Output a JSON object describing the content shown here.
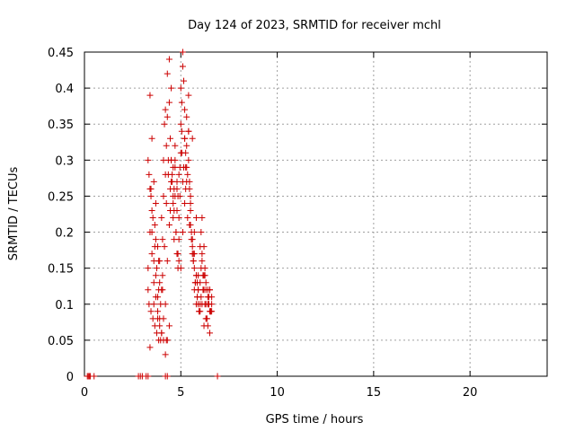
{
  "chart_data": {
    "type": "scatter",
    "title": "Day 124 of 2023, SRMTID for receiver mchl",
    "xlabel": "GPS time / hours",
    "ylabel": "SRMTID / TECUs",
    "xlim": [
      0,
      24
    ],
    "ylim": [
      0,
      0.45
    ],
    "xticks": [
      0,
      5,
      10,
      15,
      20
    ],
    "yticks": [
      0,
      0.05,
      0.1,
      0.15,
      0.2,
      0.25,
      0.3,
      0.35,
      0.4,
      0.45
    ],
    "grid": true,
    "marker": "+",
    "color": "#cc0000",
    "series": [
      {
        "name": "SRMTID",
        "x": [
          0.15,
          0.2,
          0.25,
          0.3,
          0.5,
          2.8,
          2.9,
          3.0,
          3.2,
          3.3,
          4.2,
          4.3,
          6.9,
          3.3,
          3.3,
          3.35,
          3.4,
          3.4,
          3.45,
          3.5,
          3.5,
          3.55,
          3.6,
          3.6,
          3.65,
          3.7,
          3.7,
          3.75,
          3.8,
          3.8,
          3.85,
          3.9,
          3.9,
          3.95,
          4.0,
          4.0,
          4.05,
          4.1,
          4.1,
          4.15,
          4.2,
          4.2,
          4.25,
          4.3,
          4.3,
          4.35,
          4.4,
          4.4,
          4.45,
          4.5,
          4.5,
          4.55,
          4.6,
          4.6,
          4.65,
          4.7,
          4.7,
          4.75,
          4.8,
          4.8,
          4.85,
          4.9,
          4.9,
          4.95,
          5.0,
          5.0,
          5.05,
          5.1,
          5.1,
          5.15,
          5.2,
          5.2,
          5.25,
          5.3,
          5.3,
          5.35,
          5.4,
          5.4,
          5.45,
          5.5,
          5.5,
          5.55,
          5.6,
          5.6,
          5.65,
          5.7,
          5.7,
          5.75,
          5.8,
          5.8,
          5.85,
          5.9,
          5.9,
          5.95,
          6.0,
          6.0,
          6.05,
          6.1,
          6.1,
          6.15,
          6.2,
          6.2,
          6.25,
          6.3,
          6.3,
          6.35,
          6.4,
          6.4,
          6.45,
          6.5,
          6.5,
          6.55,
          6.6,
          6.6,
          3.35,
          3.45,
          3.55,
          3.65,
          3.75,
          3.85,
          3.95,
          4.05,
          4.15,
          4.25,
          4.35,
          4.45,
          4.55,
          4.65,
          4.75,
          4.85,
          4.95,
          5.05,
          5.15,
          5.25,
          5.35,
          5.45,
          5.55,
          5.65,
          5.75,
          5.85,
          5.95,
          6.05,
          6.15,
          6.25,
          6.35,
          6.45,
          6.55,
          3.4,
          3.5,
          3.6,
          3.7,
          3.8,
          3.9,
          4.0,
          4.1,
          4.2,
          4.3,
          4.4,
          4.5,
          4.6,
          4.7,
          4.8,
          4.9,
          5.0,
          5.1,
          5.2,
          5.3,
          5.4,
          5.5,
          5.6,
          5.7,
          5.8,
          5.9,
          6.0,
          6.1,
          6.2,
          6.3,
          6.4,
          6.5,
          3.3,
          3.5,
          3.7,
          3.9,
          4.1,
          4.3,
          4.5,
          4.7,
          4.9,
          5.1,
          5.3,
          5.5,
          5.7,
          5.9,
          6.1,
          6.3,
          6.5,
          3.45,
          3.65,
          3.85,
          4.05,
          4.25,
          4.45,
          4.65,
          4.85,
          5.05,
          5.25,
          5.45,
          5.65,
          5.85,
          6.05,
          6.25,
          6.45,
          3.4,
          3.6,
          3.8,
          4.0,
          4.2,
          4.4,
          4.6,
          4.8,
          5.0,
          5.2,
          5.4,
          5.6,
          5.8,
          6.0,
          6.2,
          6.4,
          6.6
        ],
        "y": [
          0,
          0,
          0,
          0,
          0,
          0,
          0,
          0,
          0,
          0,
          0,
          0,
          0,
          0.12,
          0.3,
          0.1,
          0.26,
          0.39,
          0.09,
          0.33,
          0.2,
          0.08,
          0.27,
          0.16,
          0.07,
          0.24,
          0.14,
          0.06,
          0.18,
          0.11,
          0.05,
          0.16,
          0.08,
          0.05,
          0.22,
          0.12,
          0.19,
          0.25,
          0.3,
          0.35,
          0.28,
          0.37,
          0.32,
          0.42,
          0.36,
          0.3,
          0.38,
          0.44,
          0.26,
          0.4,
          0.3,
          0.28,
          0.25,
          0.22,
          0.19,
          0.25,
          0.3,
          0.2,
          0.17,
          0.23,
          0.15,
          0.16,
          0.22,
          0.29,
          0.35,
          0.4,
          0.38,
          0.45,
          0.43,
          0.41,
          0.37,
          0.33,
          0.29,
          0.36,
          0.32,
          0.28,
          0.34,
          0.3,
          0.26,
          0.24,
          0.21,
          0.19,
          0.18,
          0.17,
          0.16,
          0.15,
          0.12,
          0.13,
          0.1,
          0.14,
          0.11,
          0.1,
          0.12,
          0.09,
          0.13,
          0.1,
          0.2,
          0.17,
          0.22,
          0.14,
          0.18,
          0.12,
          0.15,
          0.1,
          0.13,
          0.08,
          0.11,
          0.07,
          0.1,
          0.06,
          0.12,
          0.09,
          0.11,
          0.1,
          0.28,
          0.25,
          0.22,
          0.18,
          0.15,
          0.12,
          0.1,
          0.14,
          0.18,
          0.24,
          0.28,
          0.33,
          0.27,
          0.23,
          0.2,
          0.17,
          0.25,
          0.31,
          0.29,
          0.26,
          0.22,
          0.21,
          0.2,
          0.16,
          0.13,
          0.11,
          0.09,
          0.15,
          0.12,
          0.1,
          0.08,
          0.11,
          0.09,
          0.2,
          0.17,
          0.13,
          0.11,
          0.09,
          0.07,
          0.06,
          0.05,
          0.1,
          0.16,
          0.21,
          0.27,
          0.24,
          0.29,
          0.26,
          0.19,
          0.31,
          0.27,
          0.24,
          0.29,
          0.34,
          0.23,
          0.19,
          0.17,
          0.14,
          0.12,
          0.18,
          0.16,
          0.14,
          0.12,
          0.1,
          0.09,
          0.15,
          0.23,
          0.19,
          0.13,
          0.08,
          0.05,
          0.3,
          0.32,
          0.28,
          0.2,
          0.27,
          0.25,
          0.2,
          0.14,
          0.1,
          0.08,
          0.12,
          0.26,
          0.21,
          0.16,
          0.12,
          0.05,
          0.23,
          0.26,
          0.25,
          0.34,
          0.31,
          0.27,
          0.17,
          0.13,
          0.11,
          0.14,
          0.1,
          0.04,
          0.1,
          0.08,
          0.06,
          0.03,
          0.07,
          0.29,
          0.27,
          0.15,
          0.33,
          0.39,
          0.33,
          0.22,
          0.09,
          0.07,
          0.12,
          0.09
        ]
      }
    ]
  }
}
